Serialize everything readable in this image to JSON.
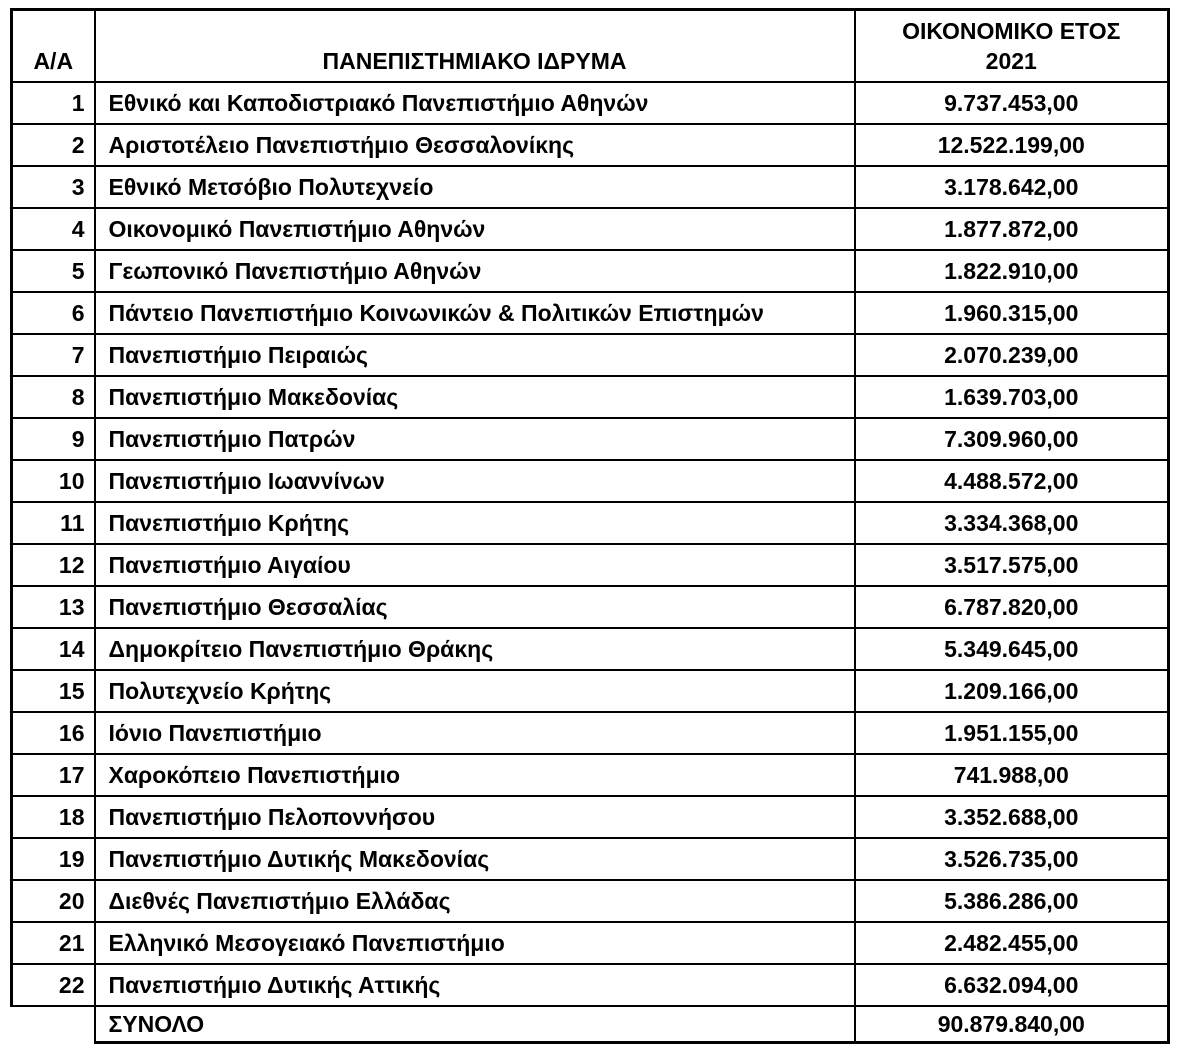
{
  "colors": {
    "background": "#ffffff",
    "text": "#000000",
    "border": "#000000"
  },
  "table": {
    "columns": [
      {
        "key": "index",
        "label": "Α/Α"
      },
      {
        "key": "institution",
        "label": "ΠΑΝΕΠΙΣΤΗΜΙΑΚΟ ΙΔΡΥΜΑ"
      },
      {
        "key": "amount",
        "label": "ΟΙΚΟΝΟΜΙΚΟ ΕΤΟΣ\n2021"
      }
    ],
    "rows": [
      {
        "index": "1",
        "institution": "Εθνικό και Καποδιστριακό Πανεπιστήμιο Αθηνών",
        "amount": "9.737.453,00"
      },
      {
        "index": "2",
        "institution": "Αριστοτέλειο Πανεπιστήμιο Θεσσαλονίκης",
        "amount": "12.522.199,00"
      },
      {
        "index": "3",
        "institution": "Εθνικό Μετσόβιο Πολυτεχνείο",
        "amount": "3.178.642,00"
      },
      {
        "index": "4",
        "institution": "Οικονομικό Πανεπιστήμιο Αθηνών",
        "amount": "1.877.872,00"
      },
      {
        "index": "5",
        "institution": "Γεωπονικό Πανεπιστήμιο Αθηνών",
        "amount": "1.822.910,00"
      },
      {
        "index": "6",
        "institution": "Πάντειο Πανεπιστήμιο Κοινωνικών & Πολιτικών Επιστημών",
        "amount": "1.960.315,00"
      },
      {
        "index": "7",
        "institution": "Πανεπιστήμιο Πειραιώς",
        "amount": "2.070.239,00"
      },
      {
        "index": "8",
        "institution": "Πανεπιστήμιο Μακεδονίας",
        "amount": "1.639.703,00"
      },
      {
        "index": "9",
        "institution": "Πανεπιστήμιο Πατρών",
        "amount": "7.309.960,00"
      },
      {
        "index": "10",
        "institution": "Πανεπιστήμιο Ιωαννίνων",
        "amount": "4.488.572,00"
      },
      {
        "index": "11",
        "institution": "Πανεπιστήμιο Κρήτης",
        "amount": "3.334.368,00"
      },
      {
        "index": "12",
        "institution": "Πανεπιστήμιο Αιγαίου",
        "amount": "3.517.575,00"
      },
      {
        "index": "13",
        "institution": "Πανεπιστήμιο Θεσσαλίας",
        "amount": "6.787.820,00"
      },
      {
        "index": "14",
        "institution": "Δημοκρίτειο Πανεπιστήμιο Θράκης",
        "amount": "5.349.645,00"
      },
      {
        "index": "15",
        "institution": "Πολυτεχνείο Κρήτης",
        "amount": "1.209.166,00"
      },
      {
        "index": "16",
        "institution": "Ιόνιο Πανεπιστήμιο",
        "amount": "1.951.155,00"
      },
      {
        "index": "17",
        "institution": "Χαροκόπειο Πανεπιστήμιο",
        "amount": "741.988,00"
      },
      {
        "index": "18",
        "institution": "Πανεπιστήμιο Πελοποννήσου",
        "amount": "3.352.688,00"
      },
      {
        "index": "19",
        "institution": "Πανεπιστήμιο Δυτικής Μακεδονίας",
        "amount": "3.526.735,00"
      },
      {
        "index": "20",
        "institution": "Διεθνές Πανεπιστήμιο Ελλάδας",
        "amount": "5.386.286,00"
      },
      {
        "index": "21",
        "institution": "Ελληνικό Μεσογειακό Πανεπιστήμιο",
        "amount": "2.482.455,00"
      },
      {
        "index": "22",
        "institution": "Πανεπιστήμιο Δυτικής Αττικής",
        "amount": "6.632.094,00"
      }
    ],
    "total": {
      "label": "ΣΥΝΟΛΟ",
      "amount": "90.879.840,00"
    }
  }
}
